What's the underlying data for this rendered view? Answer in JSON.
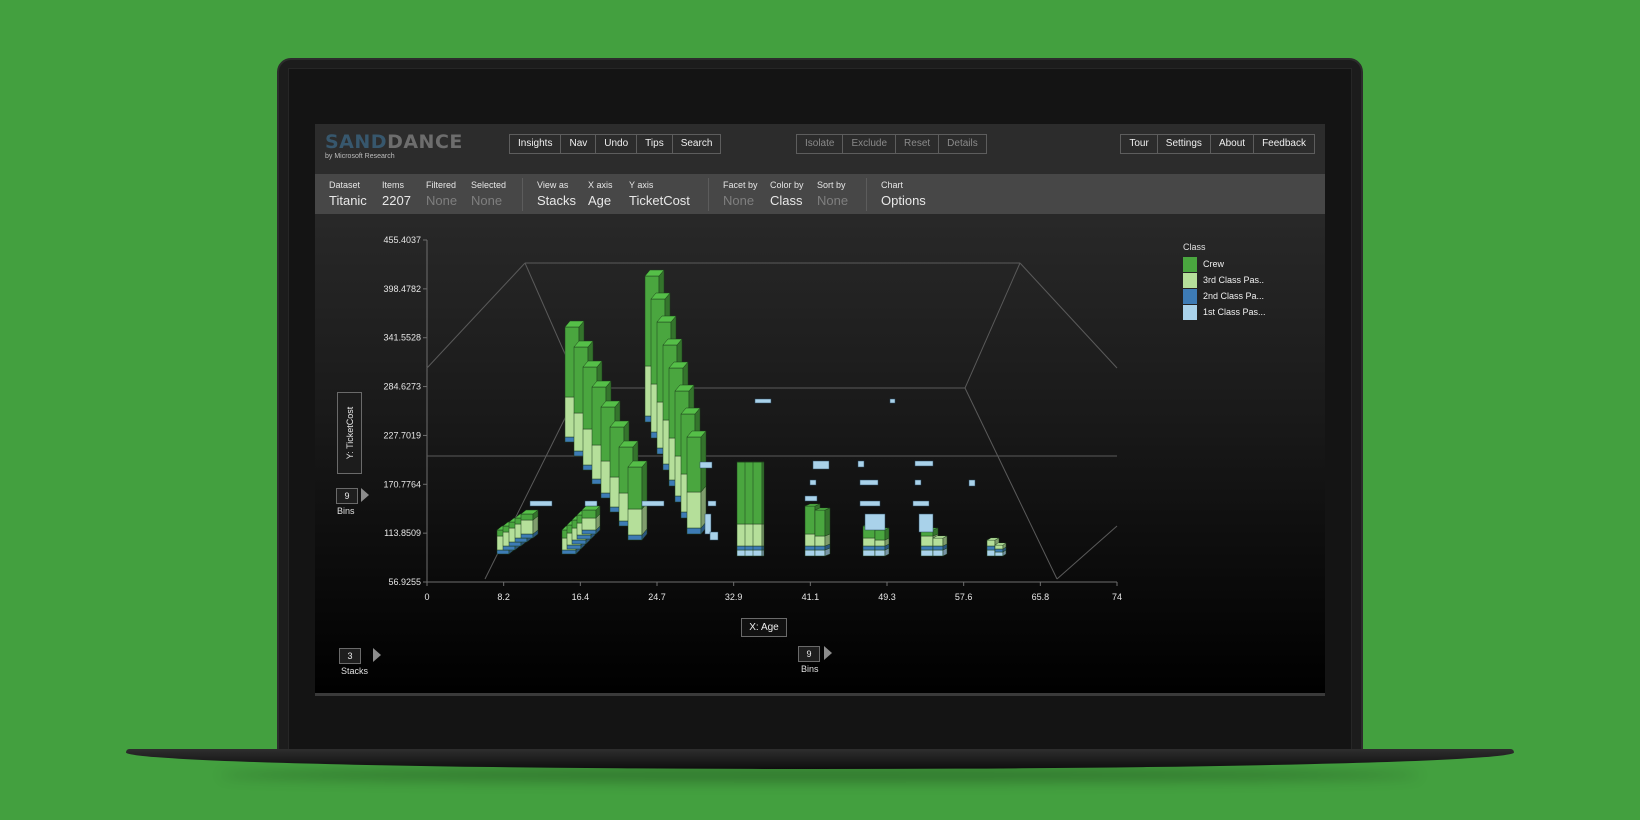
{
  "app": {
    "logo_sand": "SAND",
    "logo_dance": "DANCE",
    "logo_sub": "by Microsoft Research"
  },
  "toolbar": {
    "left": [
      "Insights",
      "Nav",
      "Undo",
      "Tips",
      "Search"
    ],
    "middle": [
      "Isolate",
      "Exclude",
      "Reset",
      "Details"
    ],
    "right": [
      "Tour",
      "Settings",
      "About",
      "Feedback"
    ]
  },
  "infobar": {
    "dataset": {
      "label": "Dataset",
      "value": "Titanic"
    },
    "items": {
      "label": "Items",
      "value": "2207"
    },
    "filtered": {
      "label": "Filtered",
      "value": "None"
    },
    "selected": {
      "label": "Selected",
      "value": "None"
    },
    "view_as": {
      "label": "View as",
      "value": "Stacks"
    },
    "x_axis": {
      "label": "X axis",
      "value": "Age"
    },
    "y_axis": {
      "label": "Y axis",
      "value": "TicketCost"
    },
    "facet_by": {
      "label": "Facet by",
      "value": "None"
    },
    "color_by": {
      "label": "Color by",
      "value": "Class"
    },
    "sort_by": {
      "label": "Sort by",
      "value": "None"
    },
    "chart": {
      "label": "Chart",
      "value": "Options"
    }
  },
  "controls": {
    "y_axis_button": "Y: TicketCost",
    "y_bins_value": "9",
    "y_bins_label": "Bins",
    "stacks_value": "3",
    "stacks_label": "Stacks",
    "x_axis_button": "X: Age",
    "x_bins_value": "9",
    "x_bins_label": "Bins"
  },
  "colors": {
    "crew": "#4aa63f",
    "third": "#b5df9a",
    "second": "#3d7bb5",
    "first": "#a9d2ea"
  },
  "chart_data": {
    "type": "bar",
    "style": "3d-stacks",
    "x_ticks": [
      "0",
      "8.2",
      "16.4",
      "24.7",
      "32.9",
      "41.1",
      "49.3",
      "57.6",
      "65.8",
      "74"
    ],
    "y_ticks": [
      "455.4037",
      "398.4782",
      "341.5528",
      "284.6273",
      "227.7019",
      "170.7764",
      "113.8509",
      "56.9255"
    ],
    "xlim": [
      0,
      74
    ],
    "ylim": [
      56.9255,
      455.4037
    ],
    "legend_title": "Class",
    "legend": [
      "Crew",
      "3rd Class Pas..",
      "2nd Class Pa...",
      "1st Class Pas..."
    ],
    "legend_placement": "top-right"
  }
}
